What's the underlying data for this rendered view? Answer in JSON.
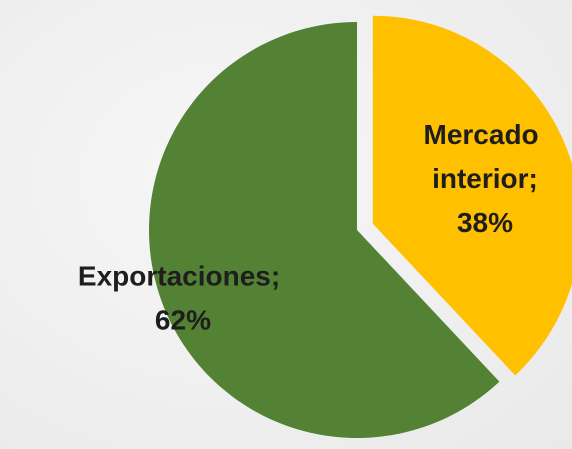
{
  "chart_data": {
    "type": "pie",
    "labels": [
      "Mercado interior; 38%",
      "Exportaciones; 62%"
    ],
    "values": [
      38,
      62
    ],
    "colors": [
      "#ffc000",
      "#548235"
    ],
    "exploded": [
      true,
      false
    ]
  }
}
